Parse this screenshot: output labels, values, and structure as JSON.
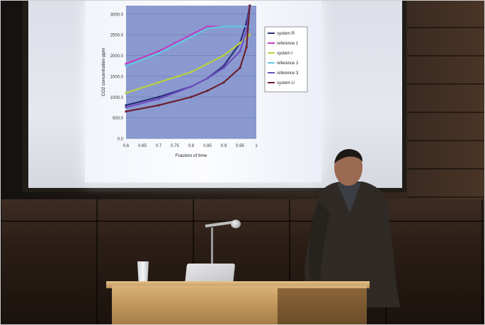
{
  "scene": "lecture hall presentation",
  "slide": {
    "ylabel": "CO2 concentration ppm",
    "xlabel": "Fraction of time"
  },
  "chart_data": {
    "type": "line",
    "xlabel": "Fraction of time",
    "ylabel": "CO2 concentration ppm",
    "xlim": [
      0.65,
      1.0
    ],
    "ylim": [
      0,
      3200
    ],
    "x_ticks": [
      "0.6",
      "0.65",
      "0.7",
      "0.75",
      "0.8",
      "0.85",
      "0.9",
      "0.95",
      "1"
    ],
    "y_ticks": [
      "0.0",
      "500.0",
      "1000.0",
      "1500.0",
      "2000.0",
      "2500.0",
      "3000.0"
    ],
    "legend_position": "right",
    "grid": true,
    "series": [
      {
        "name": "system R",
        "color": "#2b2f7a",
        "x": [
          0.6,
          0.7,
          0.8,
          0.85,
          0.9,
          0.95,
          0.97,
          0.98
        ],
        "y": [
          800,
          1000,
          1250,
          1450,
          1750,
          2300,
          2800,
          3200
        ]
      },
      {
        "name": "reference 1",
        "color": "#c040c0",
        "x": [
          0.6,
          0.7,
          0.75,
          0.8,
          0.85,
          0.9,
          0.95,
          0.98
        ],
        "y": [
          1800,
          2100,
          2300,
          2500,
          2700,
          2700,
          2700,
          2700
        ]
      },
      {
        "name": "system I",
        "color": "#b8d040",
        "x": [
          0.6,
          0.7,
          0.8,
          0.85,
          0.9,
          0.95,
          0.98
        ],
        "y": [
          1100,
          1350,
          1600,
          1800,
          2000,
          2300,
          2500
        ]
      },
      {
        "name": "reference 2",
        "color": "#60c8e0",
        "x": [
          0.6,
          0.7,
          0.75,
          0.8,
          0.85,
          0.9,
          0.95,
          0.98
        ],
        "y": [
          1750,
          2050,
          2250,
          2450,
          2650,
          2700,
          2700,
          2700
        ]
      },
      {
        "name": "reference 3",
        "color": "#7050c0",
        "x": [
          0.6,
          0.7,
          0.8,
          0.85,
          0.9,
          0.95,
          0.97,
          0.98
        ],
        "y": [
          750,
          950,
          1250,
          1450,
          1700,
          2100,
          2600,
          3200
        ]
      },
      {
        "name": "system U",
        "color": "#6b1f2e",
        "x": [
          0.6,
          0.7,
          0.8,
          0.85,
          0.9,
          0.95,
          0.97,
          0.98
        ],
        "y": [
          650,
          800,
          1000,
          1150,
          1350,
          1700,
          2200,
          3200
        ]
      }
    ]
  },
  "colors": {
    "plot_area": "#8a9ad0",
    "slide_bg": "#f4f6fc",
    "wall": "#3a2a20",
    "lectern": "#c69b62"
  }
}
